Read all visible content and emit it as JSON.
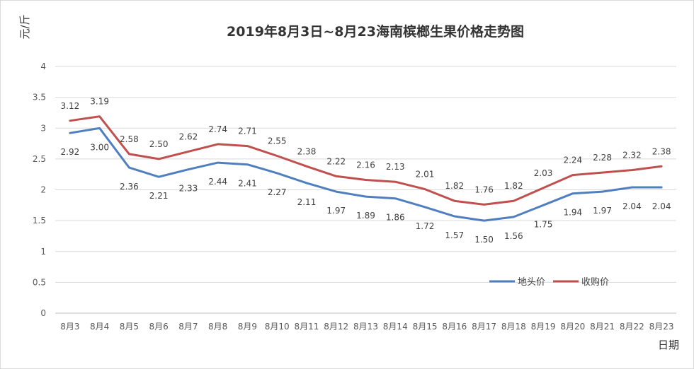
{
  "chart_data": {
    "type": "line",
    "title": "2019年8月3日~8月23海南槟榔生果价格走势图",
    "ylabel": "元/斤",
    "xlabel": "日期",
    "ylim": [
      0,
      4
    ],
    "yticks": [
      "0",
      "0.5",
      "1",
      "1.5",
      "2",
      "2.5",
      "3",
      "3.5",
      "4"
    ],
    "grid": true,
    "legend_position": "bottom-right",
    "categories": [
      "8月3",
      "8月4",
      "8月5",
      "8月6",
      "8月7",
      "8月8",
      "8月9",
      "8月10",
      "8月11",
      "8月12",
      "8月13",
      "8月14",
      "8月15",
      "8月16",
      "8月17",
      "8月18",
      "8月19",
      "8月20",
      "8月21",
      "8月22",
      "8月23"
    ],
    "series": [
      {
        "name": "地头价",
        "color": "#4f7fbf",
        "values": [
          2.92,
          3.0,
          2.36,
          2.21,
          2.33,
          2.44,
          2.41,
          2.27,
          2.11,
          1.97,
          1.89,
          1.86,
          1.72,
          1.57,
          1.5,
          1.56,
          1.75,
          1.94,
          1.97,
          2.04,
          2.04
        ],
        "labels": [
          "2.92",
          "3.00",
          "2.36",
          "2.21",
          "2.33",
          "2.44",
          "2.41",
          "2.27",
          "2.11",
          "1.97",
          "1.89",
          "1.86",
          "1.72",
          "1.57",
          "1.50",
          "1.56",
          "1.75",
          "1.94",
          "1.97",
          "2.04",
          "2.04"
        ]
      },
      {
        "name": "收购价",
        "color": "#c0504d",
        "values": [
          3.12,
          3.19,
          2.58,
          2.5,
          2.62,
          2.74,
          2.71,
          2.55,
          2.38,
          2.22,
          2.16,
          2.13,
          2.01,
          1.82,
          1.76,
          1.82,
          2.03,
          2.24,
          2.28,
          2.32,
          2.38
        ],
        "labels": [
          "3.12",
          "3.19",
          "2.58",
          "2.50",
          "2.62",
          "2.74",
          "2.71",
          "2.55",
          "2.38",
          "2.22",
          "2.16",
          "2.13",
          "2.01",
          "1.82",
          "1.76",
          "1.82",
          "2.03",
          "2.24",
          "2.28",
          "2.32",
          "2.38"
        ]
      }
    ]
  }
}
